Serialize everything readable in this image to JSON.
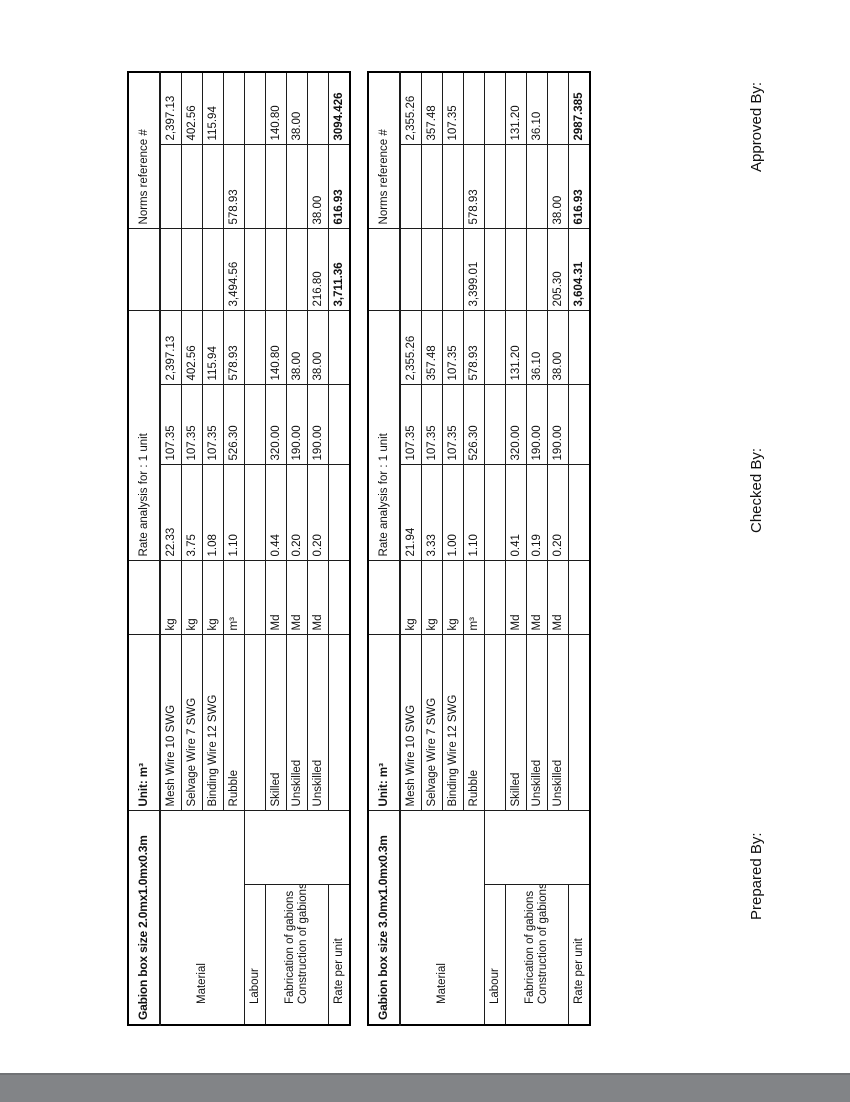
{
  "colors": {
    "gray_bar": "#828487",
    "table_border": "#000000",
    "text": "#111111"
  },
  "signatures": {
    "prepared": "Prepared By:",
    "checked": "Checked By:",
    "approved": "Approved By:"
  },
  "tables": [
    {
      "title": "Gabion box size 2.0mx1.0mx0.3m",
      "unit_label": "Unit: m³",
      "rate_analysis_label": "Rate analysis for : 1 unit",
      "norms_label": "Norms reference #",
      "material_label": "Material",
      "labour_label": "Labour",
      "fabrication_label": "Fabrication of gabions",
      "construction_label": "Construction of gabions",
      "rate_per_unit_label": "Rate per unit",
      "material_rows": [
        {
          "item": "Mesh Wire 10 SWG",
          "unit": "kg",
          "qty": "22.33",
          "rate": "107.35",
          "amount": "2,397.13",
          "subtotal": "",
          "net": "",
          "norms": "2,397.13"
        },
        {
          "item": "Selvage Wire 7 SWG",
          "unit": "kg",
          "qty": "3.75",
          "rate": "107.35",
          "amount": "402.56",
          "subtotal": "",
          "net": "",
          "norms": "402.56"
        },
        {
          "item": "Binding Wire 12 SWG",
          "unit": "kg",
          "qty": "1.08",
          "rate": "107.35",
          "amount": "115.94",
          "subtotal": "",
          "net": "",
          "norms": "115.94"
        },
        {
          "item": "Rubble",
          "unit": "m³",
          "qty": "1.10",
          "rate": "526.30",
          "amount": "578.93",
          "subtotal": "3,494.56",
          "net": "578.93",
          "norms": ""
        }
      ],
      "labour_rows": [
        {
          "item": "Skilled",
          "unit": "Md",
          "qty": "0.44",
          "rate": "320.00",
          "amount": "140.80",
          "subtotal": "",
          "net": "",
          "norms": "140.80"
        },
        {
          "item": "Unskilled",
          "unit": "Md",
          "qty": "0.20",
          "rate": "190.00",
          "amount": "38.00",
          "subtotal": "",
          "net": "",
          "norms": "38.00"
        },
        {
          "item": "Unskilled",
          "unit": "Md",
          "qty": "0.20",
          "rate": "190.00",
          "amount": "38.00",
          "subtotal": "216.80",
          "net": "38.00",
          "norms": ""
        }
      ],
      "totals": {
        "subtotal": "3,711.36",
        "net": "616.93",
        "norms": "3094.426"
      }
    },
    {
      "title": "Gabion box size 3.0mx1.0mx0.3m",
      "unit_label": "Unit: m³",
      "rate_analysis_label": "Rate analysis for : 1 unit",
      "norms_label": "Norms reference #",
      "material_label": "Material",
      "labour_label": "Labour",
      "fabrication_label": "Fabrication of gabions",
      "construction_label": "Construction of gabions",
      "rate_per_unit_label": "Rate per unit",
      "material_rows": [
        {
          "item": "Mesh Wire 10 SWG",
          "unit": "kg",
          "qty": "21.94",
          "rate": "107.35",
          "amount": "2,355.26",
          "subtotal": "",
          "net": "",
          "norms": "2,355.26"
        },
        {
          "item": "Selvage Wire 7 SWG",
          "unit": "kg",
          "qty": "3.33",
          "rate": "107.35",
          "amount": "357.48",
          "subtotal": "",
          "net": "",
          "norms": "357.48"
        },
        {
          "item": "Binding Wire 12 SWG",
          "unit": "kg",
          "qty": "1.00",
          "rate": "107.35",
          "amount": "107.35",
          "subtotal": "",
          "net": "",
          "norms": "107.35"
        },
        {
          "item": "Rubble",
          "unit": "m³",
          "qty": "1.10",
          "rate": "526.30",
          "amount": "578.93",
          "subtotal": "3,399.01",
          "net": "578.93",
          "norms": ""
        }
      ],
      "labour_rows": [
        {
          "item": "Skilled",
          "unit": "Md",
          "qty": "0.41",
          "rate": "320.00",
          "amount": "131.20",
          "subtotal": "",
          "net": "",
          "norms": "131.20"
        },
        {
          "item": "Unskilled",
          "unit": "Md",
          "qty": "0.19",
          "rate": "190.00",
          "amount": "36.10",
          "subtotal": "",
          "net": "",
          "norms": "36.10"
        },
        {
          "item": "Unskilled",
          "unit": "Md",
          "qty": "0.20",
          "rate": "190.00",
          "amount": "38.00",
          "subtotal": "205.30",
          "net": "38.00",
          "norms": ""
        }
      ],
      "totals": {
        "subtotal": "3,604.31",
        "net": "616.93",
        "norms": "2987.385"
      }
    }
  ]
}
